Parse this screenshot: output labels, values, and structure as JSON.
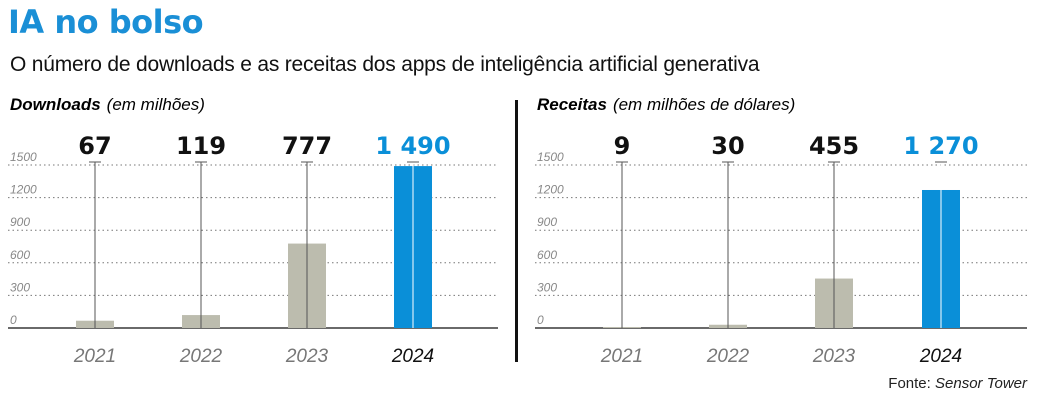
{
  "title": "IA no bolso",
  "subtitle": "O número de downloads e as receitas dos apps de inteligência artificial generativa",
  "source": {
    "prefix": "Fonte: ",
    "name": "Sensor Tower"
  },
  "colors": {
    "highlight": "#0a8fd8",
    "muted": "#bcbcae",
    "text": "#111111"
  },
  "chart_data": [
    {
      "type": "bar",
      "title_bold": "Downloads",
      "title_unit": "(em milhões)",
      "categories": [
        "2021",
        "2022",
        "2023",
        "2024"
      ],
      "values": [
        67,
        119,
        777,
        1490
      ],
      "value_labels": [
        "67",
        "119",
        "777",
        "1 490"
      ],
      "highlight_index": 3,
      "ylim": [
        0,
        1500
      ],
      "yticks": [
        "0",
        "300",
        "600",
        "900",
        "1200",
        "1500"
      ],
      "grid": true
    },
    {
      "type": "bar",
      "title_bold": "Receitas",
      "title_unit": "(em milhões de dólares)",
      "categories": [
        "2021",
        "2022",
        "2023",
        "2024"
      ],
      "values": [
        9,
        30,
        455,
        1270
      ],
      "value_labels": [
        "9",
        "30",
        "455",
        "1 270"
      ],
      "highlight_index": 3,
      "ylim": [
        0,
        1500
      ],
      "yticks": [
        "0",
        "300",
        "600",
        "900",
        "1200",
        "1500"
      ],
      "grid": true
    }
  ]
}
